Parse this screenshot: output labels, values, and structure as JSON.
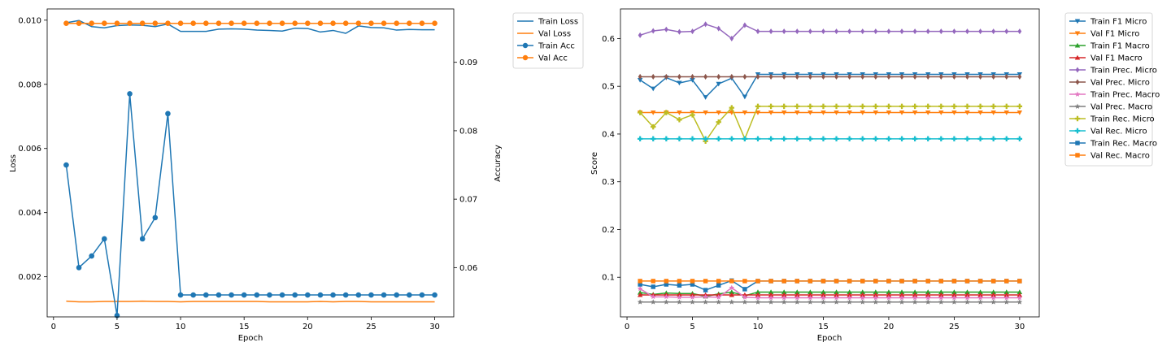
{
  "chart_data": [
    {
      "type": "line",
      "x": [
        1,
        2,
        3,
        4,
        5,
        6,
        7,
        8,
        9,
        10,
        11,
        12,
        13,
        14,
        15,
        16,
        17,
        18,
        19,
        20,
        21,
        22,
        23,
        24,
        25,
        26,
        27,
        28,
        29,
        30
      ],
      "xlabel": "Epoch",
      "ylabel": "Loss",
      "y2label": "Accuracy",
      "xlim": [
        -0.5,
        31.5
      ],
      "xticks": [
        0,
        5,
        10,
        15,
        20,
        25,
        30
      ],
      "ylim": [
        0.00075,
        0.01035
      ],
      "yticks": [
        0.002,
        0.004,
        0.006,
        0.008,
        0.01
      ],
      "ytick_labels": [
        "0.002",
        "0.004",
        "0.006",
        "0.008",
        "0.010"
      ],
      "y2lim": [
        0.0528,
        0.0978
      ],
      "y2ticks": [
        0.06,
        0.07,
        0.08,
        0.09
      ],
      "y2tick_labels": [
        "0.06",
        "0.07",
        "0.08",
        "0.09"
      ],
      "legend_position": "outside upper right",
      "grid": false,
      "series": [
        {
          "name": "Train Loss",
          "axis": "left",
          "color": "#1f77b4",
          "marker": "none",
          "values": [
            0.00992,
            0.00999,
            0.0098,
            0.00976,
            0.00983,
            0.00985,
            0.00984,
            0.0098,
            0.00988,
            0.00965,
            0.00965,
            0.00965,
            0.00972,
            0.00973,
            0.00972,
            0.00969,
            0.00968,
            0.00966,
            0.00975,
            0.00974,
            0.00963,
            0.00968,
            0.00959,
            0.00982,
            0.00977,
            0.00976,
            0.00969,
            0.00971,
            0.0097,
            0.0097
          ]
        },
        {
          "name": "Val Loss",
          "axis": "left",
          "color": "#ff7f0e",
          "marker": "none",
          "values": [
            0.00124,
            0.00122,
            0.00122,
            0.00123,
            0.00123,
            0.00123,
            0.00124,
            0.00123,
            0.00123,
            0.00122,
            0.00123,
            0.00123,
            0.00123,
            0.00123,
            0.00123,
            0.00123,
            0.00122,
            0.00122,
            0.00122,
            0.00122,
            0.00123,
            0.00122,
            0.00123,
            0.00123,
            0.00122,
            0.00122,
            0.00122,
            0.00122,
            0.00122,
            0.00122
          ]
        },
        {
          "name": "Train Acc",
          "axis": "right",
          "color": "#1f77b4",
          "marker": "circle",
          "values": [
            0.075,
            0.06,
            0.0617,
            0.0642,
            0.053,
            0.0854,
            0.0642,
            0.0673,
            0.0825,
            0.056,
            0.056,
            0.056,
            0.056,
            0.056,
            0.056,
            0.056,
            0.056,
            0.056,
            0.056,
            0.056,
            0.056,
            0.056,
            0.056,
            0.056,
            0.056,
            0.056,
            0.056,
            0.056,
            0.056,
            0.056
          ]
        },
        {
          "name": "Val Acc",
          "axis": "right",
          "color": "#ff7f0e",
          "marker": "circle",
          "values": [
            0.0957,
            0.0957,
            0.0957,
            0.0957,
            0.0957,
            0.0957,
            0.0957,
            0.0957,
            0.0957,
            0.0957,
            0.0957,
            0.0957,
            0.0957,
            0.0957,
            0.0957,
            0.0957,
            0.0957,
            0.0957,
            0.0957,
            0.0957,
            0.0957,
            0.0957,
            0.0957,
            0.0957,
            0.0957,
            0.0957,
            0.0957,
            0.0957,
            0.0957,
            0.0957
          ]
        }
      ]
    },
    {
      "type": "line",
      "x": [
        1,
        2,
        3,
        4,
        5,
        6,
        7,
        8,
        9,
        10,
        11,
        12,
        13,
        14,
        15,
        16,
        17,
        18,
        19,
        20,
        21,
        22,
        23,
        24,
        25,
        26,
        27,
        28,
        29,
        30
      ],
      "xlabel": "Epoch",
      "ylabel": "Score",
      "xlim": [
        -0.5,
        31.5
      ],
      "xticks": [
        0,
        5,
        10,
        15,
        20,
        25,
        30
      ],
      "ylim": [
        0.017,
        0.662
      ],
      "yticks": [
        0.1,
        0.2,
        0.3,
        0.4,
        0.5,
        0.6
      ],
      "ytick_labels": [
        "0.1",
        "0.2",
        "0.3",
        "0.4",
        "0.5",
        "0.6"
      ],
      "legend_position": "outside upper right",
      "grid": false,
      "series": [
        {
          "name": "Train F1 Micro",
          "color": "#1f77b4",
          "marker": "triangle-down",
          "values": [
            0.513,
            0.495,
            0.518,
            0.507,
            0.513,
            0.477,
            0.505,
            0.517,
            0.478,
            0.525,
            0.525,
            0.525,
            0.525,
            0.525,
            0.525,
            0.525,
            0.525,
            0.525,
            0.525,
            0.525,
            0.525,
            0.525,
            0.525,
            0.525,
            0.525,
            0.525,
            0.525,
            0.525,
            0.525,
            0.525
          ]
        },
        {
          "name": "Val F1 Micro",
          "color": "#ff7f0e",
          "marker": "triangle-down",
          "values": [
            0.445,
            0.445,
            0.445,
            0.445,
            0.445,
            0.445,
            0.445,
            0.445,
            0.445,
            0.445,
            0.445,
            0.445,
            0.445,
            0.445,
            0.445,
            0.445,
            0.445,
            0.445,
            0.445,
            0.445,
            0.445,
            0.445,
            0.445,
            0.445,
            0.445,
            0.445,
            0.445,
            0.445,
            0.445,
            0.445
          ]
        },
        {
          "name": "Train F1 Macro",
          "color": "#2ca02c",
          "marker": "triangle-up",
          "values": [
            0.068,
            0.064,
            0.067,
            0.066,
            0.066,
            0.06,
            0.065,
            0.069,
            0.061,
            0.069,
            0.069,
            0.069,
            0.069,
            0.069,
            0.069,
            0.069,
            0.069,
            0.069,
            0.069,
            0.069,
            0.069,
            0.069,
            0.069,
            0.069,
            0.069,
            0.069,
            0.069,
            0.069,
            0.069,
            0.069
          ]
        },
        {
          "name": "Val F1 Macro",
          "color": "#d62728",
          "marker": "triangle-up",
          "values": [
            0.063,
            0.063,
            0.063,
            0.063,
            0.063,
            0.063,
            0.063,
            0.063,
            0.063,
            0.063,
            0.063,
            0.063,
            0.063,
            0.063,
            0.063,
            0.063,
            0.063,
            0.063,
            0.063,
            0.063,
            0.063,
            0.063,
            0.063,
            0.063,
            0.063,
            0.063,
            0.063,
            0.063,
            0.063,
            0.063
          ]
        },
        {
          "name": "Train Prec. Micro",
          "color": "#9467bd",
          "marker": "diamond",
          "values": [
            0.607,
            0.616,
            0.619,
            0.614,
            0.615,
            0.63,
            0.621,
            0.6,
            0.628,
            0.615,
            0.615,
            0.615,
            0.615,
            0.615,
            0.615,
            0.615,
            0.615,
            0.615,
            0.615,
            0.615,
            0.615,
            0.615,
            0.615,
            0.615,
            0.615,
            0.615,
            0.615,
            0.615,
            0.615,
            0.615
          ]
        },
        {
          "name": "Val Prec. Micro",
          "color": "#8c564b",
          "marker": "diamond",
          "values": [
            0.52,
            0.52,
            0.52,
            0.52,
            0.52,
            0.52,
            0.52,
            0.52,
            0.52,
            0.52,
            0.52,
            0.52,
            0.52,
            0.52,
            0.52,
            0.52,
            0.52,
            0.52,
            0.52,
            0.52,
            0.52,
            0.52,
            0.52,
            0.52,
            0.52,
            0.52,
            0.52,
            0.52,
            0.52,
            0.52
          ]
        },
        {
          "name": "Train Prec. Macro",
          "color": "#e377c2",
          "marker": "star",
          "values": [
            0.076,
            0.059,
            0.059,
            0.058,
            0.058,
            0.059,
            0.058,
            0.078,
            0.058,
            0.057,
            0.057,
            0.057,
            0.057,
            0.057,
            0.057,
            0.057,
            0.057,
            0.057,
            0.057,
            0.057,
            0.057,
            0.057,
            0.057,
            0.057,
            0.057,
            0.057,
            0.057,
            0.057,
            0.057,
            0.057
          ]
        },
        {
          "name": "Val Prec. Macro",
          "color": "#7f7f7f",
          "marker": "star",
          "values": [
            0.048,
            0.048,
            0.048,
            0.048,
            0.048,
            0.048,
            0.048,
            0.048,
            0.048,
            0.048,
            0.048,
            0.048,
            0.048,
            0.048,
            0.048,
            0.048,
            0.048,
            0.048,
            0.048,
            0.048,
            0.048,
            0.048,
            0.048,
            0.048,
            0.048,
            0.048,
            0.048,
            0.048,
            0.048,
            0.048
          ]
        },
        {
          "name": "Train Rec. Micro",
          "color": "#bcbd22",
          "marker": "plus",
          "values": [
            0.445,
            0.415,
            0.445,
            0.43,
            0.44,
            0.385,
            0.425,
            0.455,
            0.39,
            0.458,
            0.458,
            0.458,
            0.458,
            0.458,
            0.458,
            0.458,
            0.458,
            0.458,
            0.458,
            0.458,
            0.458,
            0.458,
            0.458,
            0.458,
            0.458,
            0.458,
            0.458,
            0.458,
            0.458,
            0.458
          ]
        },
        {
          "name": "Val Rec. Micro",
          "color": "#17becf",
          "marker": "plus",
          "values": [
            0.39,
            0.39,
            0.39,
            0.39,
            0.39,
            0.39,
            0.39,
            0.39,
            0.39,
            0.39,
            0.39,
            0.39,
            0.39,
            0.39,
            0.39,
            0.39,
            0.39,
            0.39,
            0.39,
            0.39,
            0.39,
            0.39,
            0.39,
            0.39,
            0.39,
            0.39,
            0.39,
            0.39,
            0.39,
            0.39
          ]
        },
        {
          "name": "Train Rec. Macro",
          "color": "#1f77b4",
          "marker": "square",
          "values": [
            0.085,
            0.08,
            0.085,
            0.083,
            0.085,
            0.073,
            0.083,
            0.093,
            0.075,
            0.092,
            0.092,
            0.092,
            0.092,
            0.092,
            0.092,
            0.092,
            0.092,
            0.092,
            0.092,
            0.092,
            0.092,
            0.092,
            0.092,
            0.092,
            0.092,
            0.092,
            0.092,
            0.092,
            0.092,
            0.092
          ]
        },
        {
          "name": "Val Rec. Macro",
          "color": "#ff7f0e",
          "marker": "square",
          "values": [
            0.092,
            0.092,
            0.092,
            0.092,
            0.092,
            0.092,
            0.092,
            0.092,
            0.092,
            0.092,
            0.092,
            0.092,
            0.092,
            0.092,
            0.092,
            0.092,
            0.092,
            0.092,
            0.092,
            0.092,
            0.092,
            0.092,
            0.092,
            0.092,
            0.092,
            0.092,
            0.092,
            0.092,
            0.092,
            0.092
          ]
        }
      ]
    }
  ]
}
